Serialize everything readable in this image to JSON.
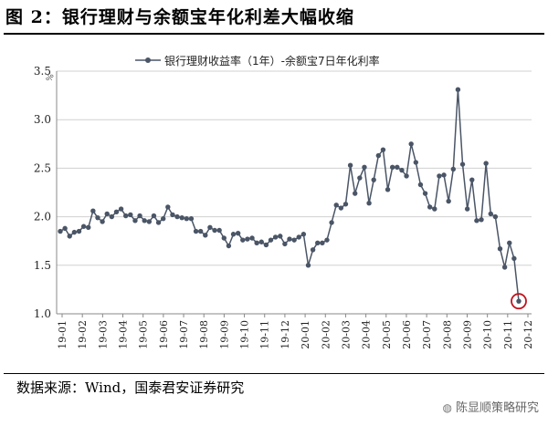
{
  "figure_title": "图 2：银行理财与余额宝年化利差大幅收缩",
  "source_text": "数据来源：Wind，国泰君安证券研究",
  "watermark": {
    "icon": "wechat-icon",
    "text": "陈显顺策略研究"
  },
  "colors": {
    "series": "#4a5566",
    "highlight_ring": "#c0121e",
    "grid": "#d0d0d0"
  },
  "chart_data": {
    "type": "line",
    "y_unit": "%",
    "ylim": [
      1.0,
      3.5
    ],
    "yticks": [
      1.0,
      1.5,
      2.0,
      2.5,
      3.0,
      3.5
    ],
    "ytick_labels": [
      "1.0",
      "1.5",
      "2.0",
      "2.5",
      "3.0",
      "3.5"
    ],
    "x_tick_labels": [
      "19-01",
      "19-02",
      "19-03",
      "19-04",
      "19-05",
      "19-06",
      "19-07",
      "19-08",
      "19-09",
      "19-10",
      "19-11",
      "19-12",
      "20-01",
      "20-02",
      "20-03",
      "20-04",
      "20-05",
      "20-06",
      "20-07",
      "20-08",
      "20-09",
      "20-10",
      "20-11",
      "20-12"
    ],
    "grid": "horizontal",
    "legend": "top",
    "series": [
      {
        "name": "银行理财收益率（1年）-余额宝7日年化利率",
        "values": [
          1.85,
          1.88,
          1.8,
          1.84,
          1.85,
          1.9,
          1.89,
          2.06,
          1.99,
          1.95,
          2.03,
          2.0,
          2.05,
          2.08,
          2.01,
          2.02,
          1.96,
          2.01,
          1.96,
          1.95,
          2.01,
          1.94,
          1.98,
          2.1,
          2.02,
          2.0,
          1.99,
          1.98,
          1.98,
          1.85,
          1.85,
          1.81,
          1.89,
          1.86,
          1.86,
          1.78,
          1.7,
          1.82,
          1.83,
          1.76,
          1.77,
          1.78,
          1.73,
          1.74,
          1.71,
          1.76,
          1.79,
          1.8,
          1.72,
          1.77,
          1.76,
          1.79,
          1.82,
          1.5,
          1.66,
          1.73,
          1.73,
          1.76,
          1.94,
          2.12,
          2.09,
          2.13,
          2.53,
          2.24,
          2.4,
          2.51,
          2.14,
          2.38,
          2.63,
          2.69,
          2.28,
          2.51,
          2.51,
          2.48,
          2.42,
          2.75,
          2.56,
          2.33,
          2.24,
          2.1,
          2.08,
          2.42,
          2.43,
          2.16,
          2.49,
          3.31,
          2.54,
          2.08,
          2.38,
          1.96,
          1.97,
          2.55,
          2.03,
          2.0,
          1.67,
          1.48,
          1.73,
          1.57,
          1.13
        ],
        "highlight_last": true
      }
    ]
  }
}
